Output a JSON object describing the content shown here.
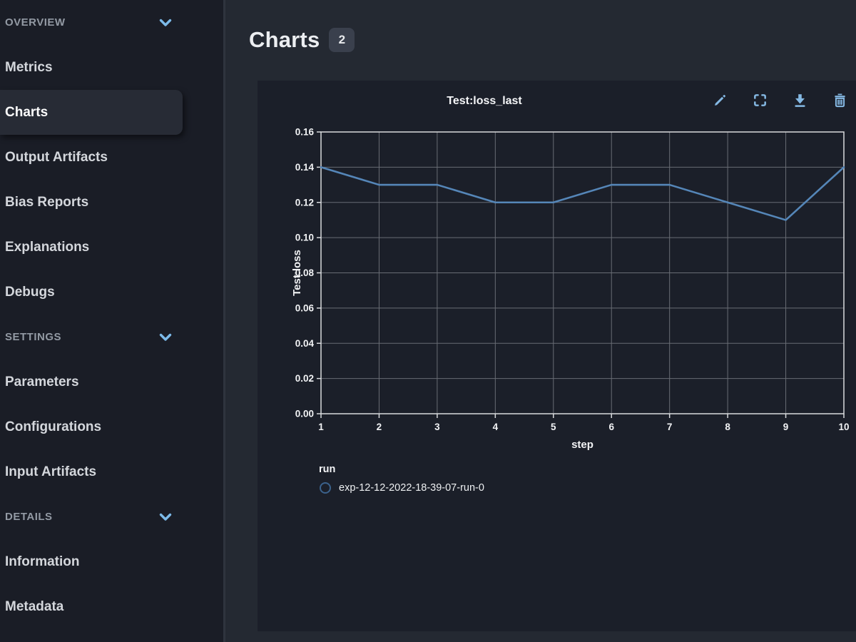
{
  "sidebar": {
    "items": [
      {
        "label": "OVERVIEW",
        "type": "section"
      },
      {
        "label": "Metrics",
        "type": "item"
      },
      {
        "label": "Charts",
        "type": "item",
        "selected": true
      },
      {
        "label": "Output Artifacts",
        "type": "item"
      },
      {
        "label": "Bias Reports",
        "type": "item"
      },
      {
        "label": "Explanations",
        "type": "item"
      },
      {
        "label": "Debugs",
        "type": "item"
      },
      {
        "label": "SETTINGS",
        "type": "section"
      },
      {
        "label": "Parameters",
        "type": "item"
      },
      {
        "label": "Configurations",
        "type": "item"
      },
      {
        "label": "Input Artifacts",
        "type": "item"
      },
      {
        "label": "DETAILS",
        "type": "section"
      },
      {
        "label": "Information",
        "type": "item"
      },
      {
        "label": "Metadata",
        "type": "item"
      }
    ]
  },
  "header": {
    "title": "Charts",
    "badge_count": "2"
  },
  "chart_card": {
    "title": "Test:loss_last",
    "toolbar": [
      {
        "name": "edit",
        "icon": "pencil-icon"
      },
      {
        "name": "fullscreen",
        "icon": "fullscreen-icon"
      },
      {
        "name": "download",
        "icon": "download-icon"
      },
      {
        "name": "delete",
        "icon": "trash-icon"
      }
    ],
    "legend": {
      "title": "run",
      "items": [
        {
          "label": "exp-12-12-2022-18-39-07-run-0"
        }
      ]
    }
  },
  "chart_data": {
    "type": "line",
    "title": "Test:loss_last",
    "x": [
      1,
      2,
      3,
      4,
      5,
      6,
      7,
      8,
      9,
      10
    ],
    "series": [
      {
        "name": "exp-12-12-2022-18-39-07-run-0",
        "values": [
          0.14,
          0.13,
          0.13,
          0.12,
          0.12,
          0.13,
          0.13,
          0.12,
          0.11,
          0.14
        ],
        "color": "#5586b8"
      }
    ],
    "xlabel": "step",
    "ylabel": "Test:loss",
    "xlim": [
      1,
      10
    ],
    "ylim": [
      0,
      0.16
    ],
    "ytick_step": 0.02,
    "grid": true,
    "legend_position": "bottom-left"
  },
  "colors": {
    "accent_icon_blue": "#85b9e4",
    "chevron_blue": "#7cbae9",
    "line_blue": "#5586b8",
    "legend_marker_stroke": "#3b628c",
    "sidebar_bg": "#1a1d26",
    "main_bg": "#242932",
    "card_bg": "#1b1f29",
    "selected_item_bg": "#272b35",
    "badge_bg": "#3a404d",
    "grid_line": "#686c74",
    "axis_border": "#d9dbde",
    "text_primary": "#f2f3f5"
  }
}
